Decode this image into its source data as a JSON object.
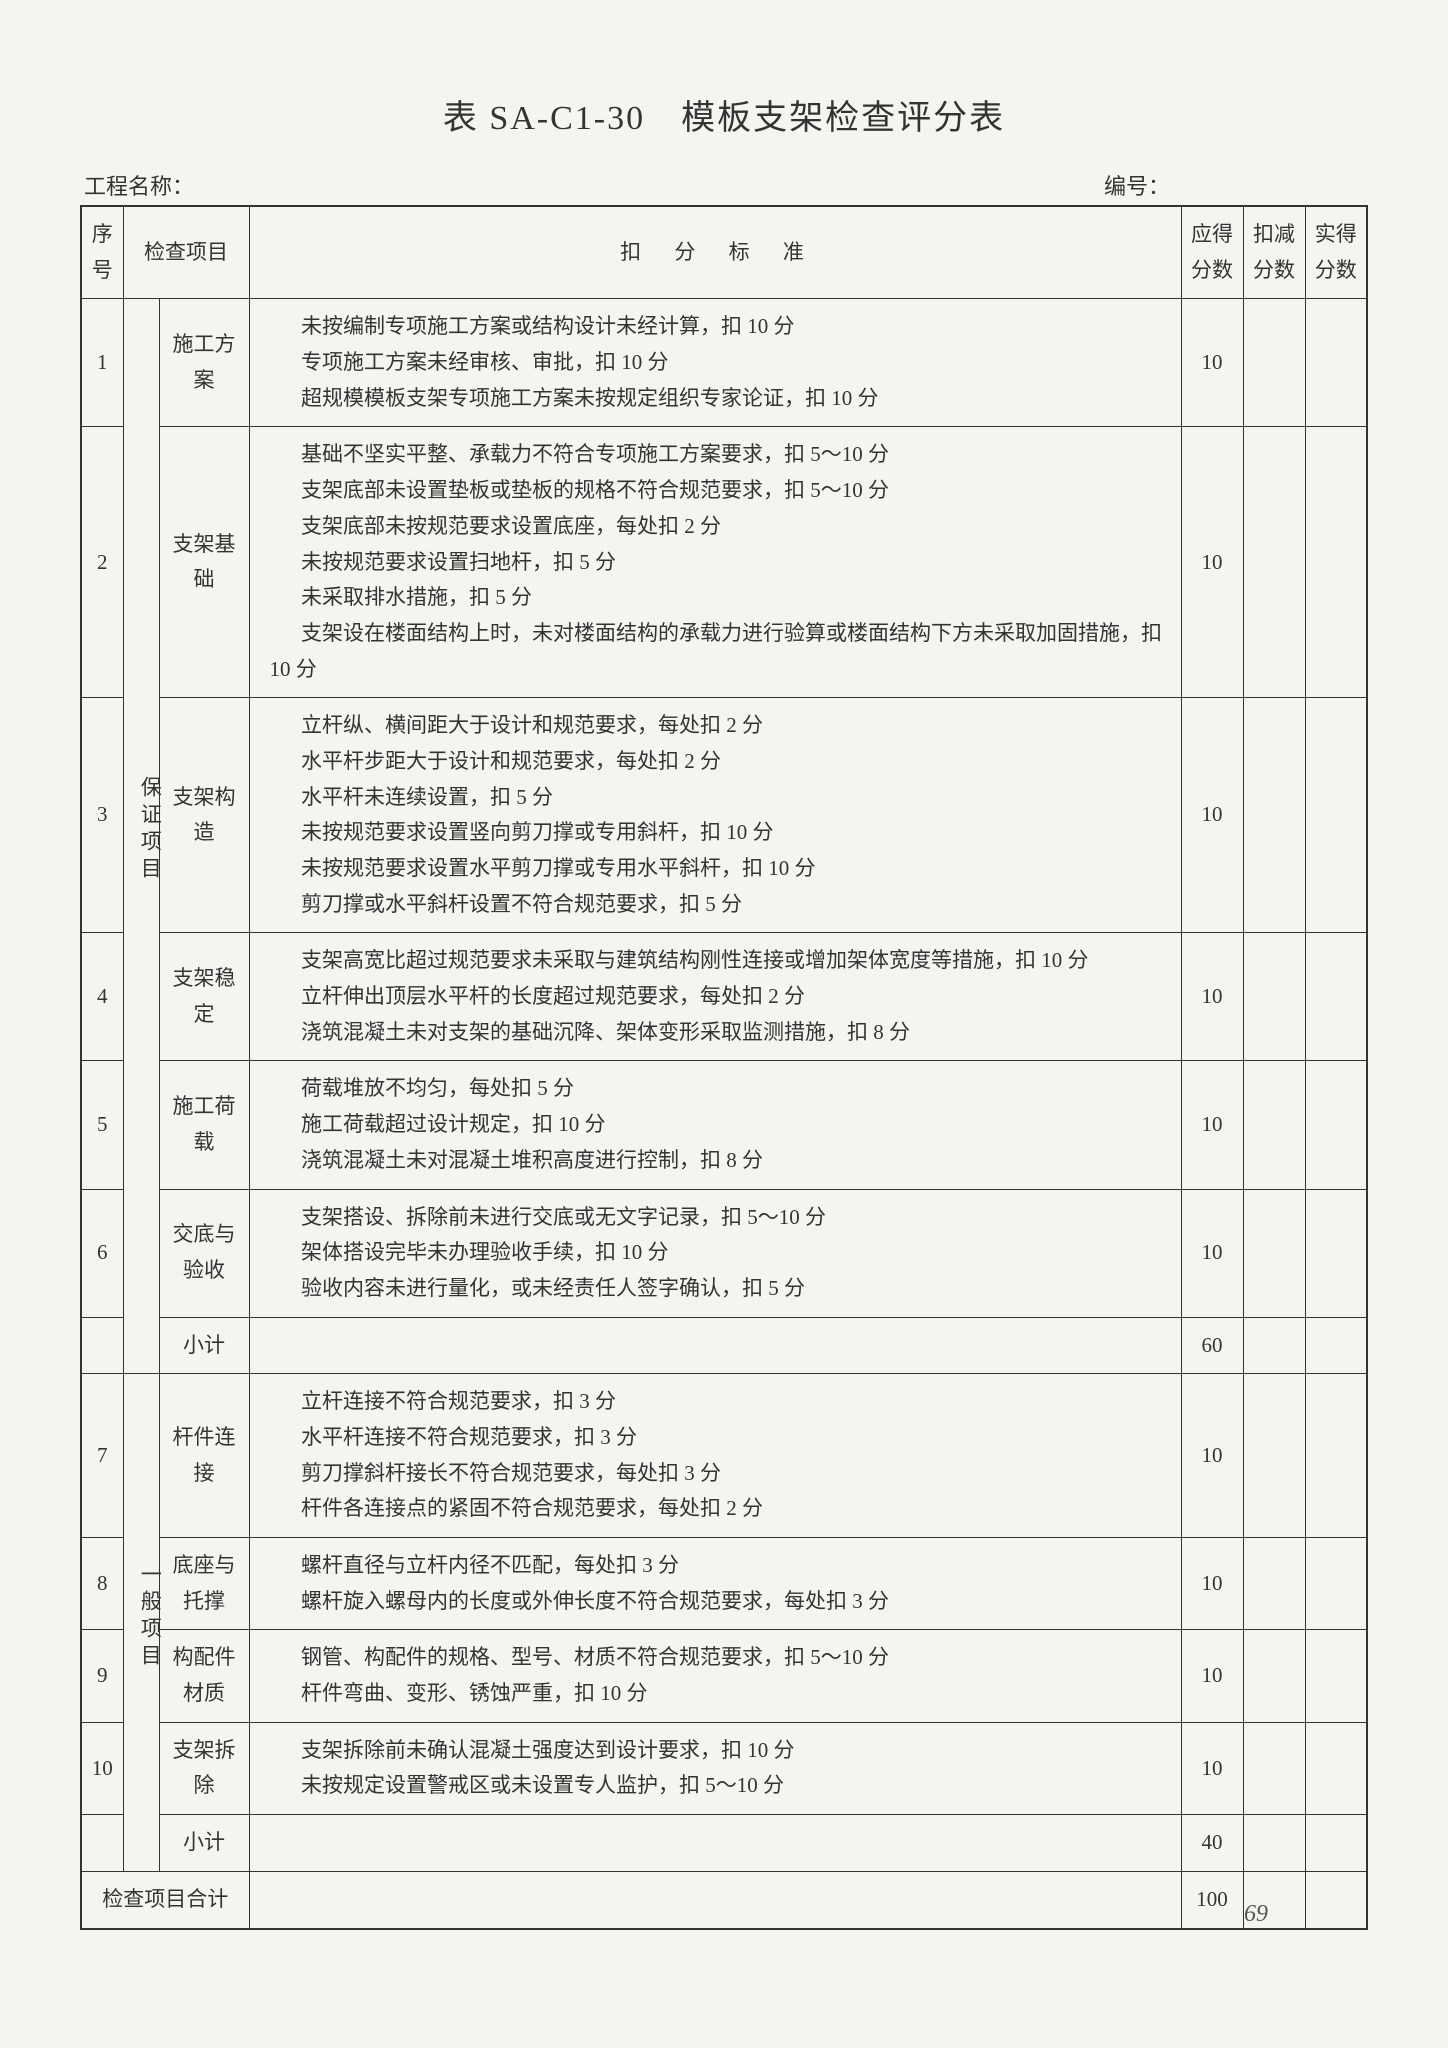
{
  "title": "表 SA-C1-30　模板支架检查评分表",
  "meta": {
    "project_label": "工程名称：",
    "serial_label": "编号："
  },
  "header": {
    "seq": "序号",
    "item": "检查项目",
    "criteria": "扣 分 标 准",
    "score": "应得分数",
    "deduct": "扣减分数",
    "actual": "实得分数"
  },
  "groups": [
    {
      "label": "保证项目",
      "rows": [
        {
          "seq": "1",
          "item": "施工方案",
          "criteria": [
            "未按编制专项施工方案或结构设计未经计算，扣 10 分",
            "专项施工方案未经审核、审批，扣 10 分",
            "超规模模板支架专项施工方案未按规定组织专家论证，扣 10 分"
          ],
          "score": "10"
        },
        {
          "seq": "2",
          "item": "支架基础",
          "criteria": [
            "基础不坚实平整、承载力不符合专项施工方案要求，扣 5～10 分",
            "支架底部未设置垫板或垫板的规格不符合规范要求，扣 5～10 分",
            "支架底部未按规范要求设置底座，每处扣 2 分",
            "未按规范要求设置扫地杆，扣 5 分",
            "未采取排水措施，扣 5 分",
            "支架设在楼面结构上时，未对楼面结构的承载力进行验算或楼面结构下方未采取加固措施，扣 10 分"
          ],
          "score": "10"
        },
        {
          "seq": "3",
          "item": "支架构造",
          "criteria": [
            "立杆纵、横间距大于设计和规范要求，每处扣 2 分",
            "水平杆步距大于设计和规范要求，每处扣 2 分",
            "水平杆未连续设置，扣 5 分",
            "未按规范要求设置竖向剪刀撑或专用斜杆，扣 10 分",
            "未按规范要求设置水平剪刀撑或专用水平斜杆，扣 10 分",
            "剪刀撑或水平斜杆设置不符合规范要求，扣 5 分"
          ],
          "score": "10"
        },
        {
          "seq": "4",
          "item": "支架稳定",
          "criteria": [
            "支架高宽比超过规范要求未采取与建筑结构刚性连接或增加架体宽度等措施，扣 10 分",
            "立杆伸出顶层水平杆的长度超过规范要求，每处扣 2 分",
            "浇筑混凝土未对支架的基础沉降、架体变形采取监测措施，扣 8 分"
          ],
          "score": "10"
        },
        {
          "seq": "5",
          "item": "施工荷载",
          "criteria": [
            "荷载堆放不均匀，每处扣 5 分",
            "施工荷载超过设计规定，扣 10 分",
            "浇筑混凝土未对混凝土堆积高度进行控制，扣 8 分"
          ],
          "score": "10"
        },
        {
          "seq": "6",
          "item": "交底与验收",
          "criteria": [
            "支架搭设、拆除前未进行交底或无文字记录，扣 5～10 分",
            "架体搭设完毕未办理验收手续，扣 10 分",
            "验收内容未进行量化，或未经责任人签字确认，扣 5 分"
          ],
          "score": "10"
        }
      ],
      "subtotal_label": "小计",
      "subtotal_score": "60"
    },
    {
      "label": "一般项目",
      "rows": [
        {
          "seq": "7",
          "item": "杆件连接",
          "criteria": [
            "立杆连接不符合规范要求，扣 3 分",
            "水平杆连接不符合规范要求，扣 3 分",
            "剪刀撑斜杆接长不符合规范要求，每处扣 3 分",
            "杆件各连接点的紧固不符合规范要求，每处扣 2 分"
          ],
          "score": "10"
        },
        {
          "seq": "8",
          "item": "底座与托撑",
          "criteria": [
            "螺杆直径与立杆内径不匹配，每处扣 3 分",
            "螺杆旋入螺母内的长度或外伸长度不符合规范要求，每处扣 3 分"
          ],
          "score": "10"
        },
        {
          "seq": "9",
          "item": "构配件材质",
          "criteria": [
            "钢管、构配件的规格、型号、材质不符合规范要求，扣 5～10 分",
            "杆件弯曲、变形、锈蚀严重，扣 10 分"
          ],
          "score": "10"
        },
        {
          "seq": "10",
          "item": "支架拆除",
          "criteria": [
            "支架拆除前未确认混凝土强度达到设计要求，扣 10 分",
            "未按规定设置警戒区或未设置专人监护，扣 5～10 分"
          ],
          "score": "10"
        }
      ],
      "subtotal_label": "小计",
      "subtotal_score": "40"
    }
  ],
  "total_label": "检查项目合计",
  "total_score": "100",
  "pagenum": "69",
  "colors": {
    "page_bg": "#f5f5f0",
    "text": "#333333",
    "border": "#333333"
  }
}
